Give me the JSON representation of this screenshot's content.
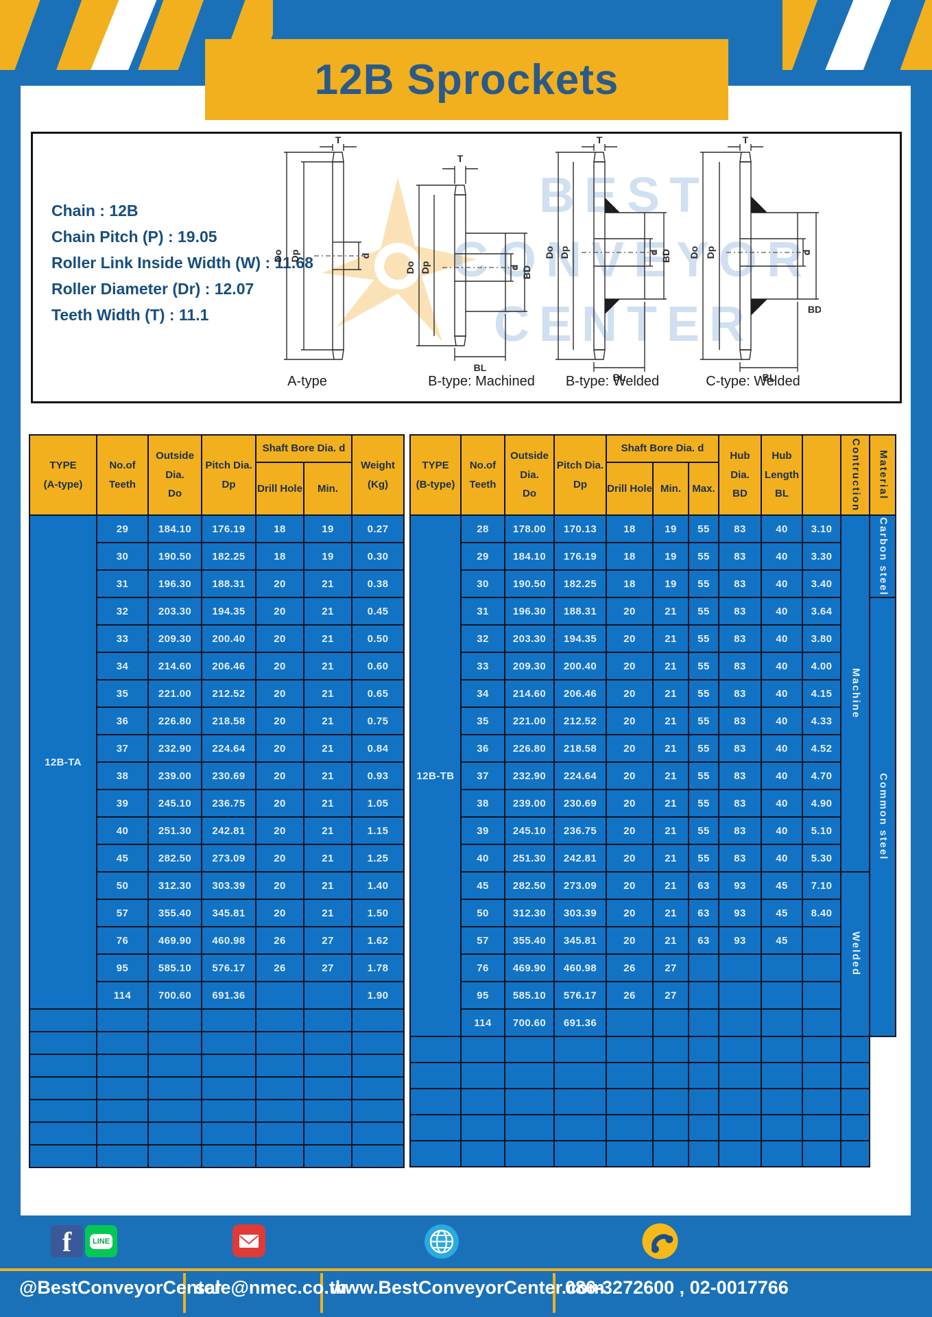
{
  "page": {
    "title": "12B Sprockets"
  },
  "info": {
    "specs": [
      "Chain  :  12B",
      "Chain Pitch (P)  :  19.05",
      "Roller Link Inside Width (W) : 11.68",
      "Roller Diameter (Dr)  : 12.07",
      "Teeth Width (T)  :  11.1"
    ],
    "captions": [
      "A-type",
      "B-type: Machined",
      "B-type: Welded",
      "C-type: Welded"
    ],
    "dim_labels": {
      "t": "T",
      "dia_o": "Do",
      "dia_p": "Dp",
      "d": "d",
      "bd": "BD",
      "bl": "BL"
    },
    "watermark": "BEST\nCONVEYOR\nCENTER"
  },
  "table_a": {
    "type_label": "12B-TA",
    "header": {
      "type": "TYPE\n(A-type)",
      "teeth": "No.of\nTeeth",
      "outside": "Outside\nDia.\nDo",
      "pitch": "Pitch Dia.\nDp",
      "shaft_bore": "Shaft Bore Dia. d",
      "drill": "Drill Hole",
      "min": "Min.",
      "weight": "Weight\n(Kg)"
    },
    "rows": [
      [
        "29",
        "184.10",
        "176.19",
        "18",
        "19",
        "0.27"
      ],
      [
        "30",
        "190.50",
        "182.25",
        "18",
        "19",
        "0.30"
      ],
      [
        "31",
        "196.30",
        "188.31",
        "20",
        "21",
        "0.38"
      ],
      [
        "32",
        "203.30",
        "194.35",
        "20",
        "21",
        "0.45"
      ],
      [
        "33",
        "209.30",
        "200.40",
        "20",
        "21",
        "0.50"
      ],
      [
        "34",
        "214.60",
        "206.46",
        "20",
        "21",
        "0.60"
      ],
      [
        "35",
        "221.00",
        "212.52",
        "20",
        "21",
        "0.65"
      ],
      [
        "36",
        "226.80",
        "218.58",
        "20",
        "21",
        "0.75"
      ],
      [
        "37",
        "232.90",
        "224.64",
        "20",
        "21",
        "0.84"
      ],
      [
        "38",
        "239.00",
        "230.69",
        "20",
        "21",
        "0.93"
      ],
      [
        "39",
        "245.10",
        "236.75",
        "20",
        "21",
        "1.05"
      ],
      [
        "40",
        "251.30",
        "242.81",
        "20",
        "21",
        "1.15"
      ],
      [
        "45",
        "282.50",
        "273.09",
        "20",
        "21",
        "1.25"
      ],
      [
        "50",
        "312.30",
        "303.39",
        "20",
        "21",
        "1.40"
      ],
      [
        "57",
        "355.40",
        "345.81",
        "20",
        "21",
        "1.50"
      ],
      [
        "76",
        "469.90",
        "460.98",
        "26",
        "27",
        "1.62"
      ],
      [
        "95",
        "585.10",
        "576.17",
        "26",
        "27",
        "1.78"
      ],
      [
        "114",
        "700.60",
        "691.36",
        "",
        "",
        "1.90"
      ]
    ],
    "empty_rows": 7,
    "empty_cols": 7
  },
  "table_b": {
    "type_label": "12B-TB",
    "header": {
      "type": "TYPE\n(B-type)",
      "teeth": "No.of\nTeeth",
      "outside": "Outside\nDia.\nDo",
      "pitch": "Pitch Dia.\nDp",
      "shaft_bore": "Shaft Bore Dia. d",
      "drill": "Drill Hole",
      "min": "Min.",
      "max": "Max.",
      "hub_dia": "Hub Dia.\nBD",
      "hub_len": "Hub\nLength\nBL",
      "construction": "Contruction",
      "material": "Material"
    },
    "rows": [
      [
        "28",
        "178.00",
        "170.13",
        "18",
        "19",
        "55",
        "83",
        "40",
        "3.10"
      ],
      [
        "29",
        "184.10",
        "176.19",
        "18",
        "19",
        "55",
        "83",
        "40",
        "3.30"
      ],
      [
        "30",
        "190.50",
        "182.25",
        "18",
        "19",
        "55",
        "83",
        "40",
        "3.40"
      ],
      [
        "31",
        "196.30",
        "188.31",
        "20",
        "21",
        "55",
        "83",
        "40",
        "3.64"
      ],
      [
        "32",
        "203.30",
        "194.35",
        "20",
        "21",
        "55",
        "83",
        "40",
        "3.80"
      ],
      [
        "33",
        "209.30",
        "200.40",
        "20",
        "21",
        "55",
        "83",
        "40",
        "4.00"
      ],
      [
        "34",
        "214.60",
        "206.46",
        "20",
        "21",
        "55",
        "83",
        "40",
        "4.15"
      ],
      [
        "35",
        "221.00",
        "212.52",
        "20",
        "21",
        "55",
        "83",
        "40",
        "4.33"
      ],
      [
        "36",
        "226.80",
        "218.58",
        "20",
        "21",
        "55",
        "83",
        "40",
        "4.52"
      ],
      [
        "37",
        "232.90",
        "224.64",
        "20",
        "21",
        "55",
        "83",
        "40",
        "4.70"
      ],
      [
        "38",
        "239.00",
        "230.69",
        "20",
        "21",
        "55",
        "83",
        "40",
        "4.90"
      ],
      [
        "39",
        "245.10",
        "236.75",
        "20",
        "21",
        "55",
        "83",
        "40",
        "5.10"
      ],
      [
        "40",
        "251.30",
        "242.81",
        "20",
        "21",
        "55",
        "83",
        "40",
        "5.30"
      ],
      [
        "45",
        "282.50",
        "273.09",
        "20",
        "21",
        "63",
        "93",
        "45",
        "7.10"
      ],
      [
        "50",
        "312.30",
        "303.39",
        "20",
        "21",
        "63",
        "93",
        "45",
        "8.40"
      ],
      [
        "57",
        "355.40",
        "345.81",
        "20",
        "21",
        "63",
        "93",
        "45",
        ""
      ],
      [
        "76",
        "469.90",
        "460.98",
        "26",
        "27",
        "",
        "",
        "",
        ""
      ],
      [
        "95",
        "585.10",
        "576.17",
        "26",
        "27",
        "",
        "",
        "",
        ""
      ],
      [
        "114",
        "700.60",
        "691.36",
        "",
        "",
        "",
        "",
        "",
        ""
      ]
    ],
    "construction": [
      {
        "from": 0,
        "span": 13,
        "label": "Machine"
      },
      {
        "from": 13,
        "span": 6,
        "label": "Welded"
      }
    ],
    "material": [
      {
        "from": 0,
        "span": 3,
        "label": "Carbon steel"
      },
      {
        "from": 3,
        "span": 16,
        "label": "Common steel"
      }
    ],
    "empty_rows": 5,
    "empty_cols": 11
  },
  "footer": {
    "handle": "@BestConveyorCenter",
    "email": "sale@nmec.co.th",
    "website": "www.BestConveyorCenter.com",
    "phones": "086-3272600 , 02-0017766",
    "facebook_glyph": "f",
    "line_label": "LINE"
  },
  "colors": {
    "page_blue": "#1a71b8",
    "cell_blue": "#1273c5",
    "accent_yellow": "#f2b01e",
    "title_text_blue": "#2b5a88",
    "spec_text_blue": "#174e7e",
    "facebook_blue": "#3b5998",
    "line_green": "#06c755",
    "mail_red": "#e03a36",
    "globe_blue": "#2aaae1",
    "phone_yellow": "#f5b91a"
  }
}
